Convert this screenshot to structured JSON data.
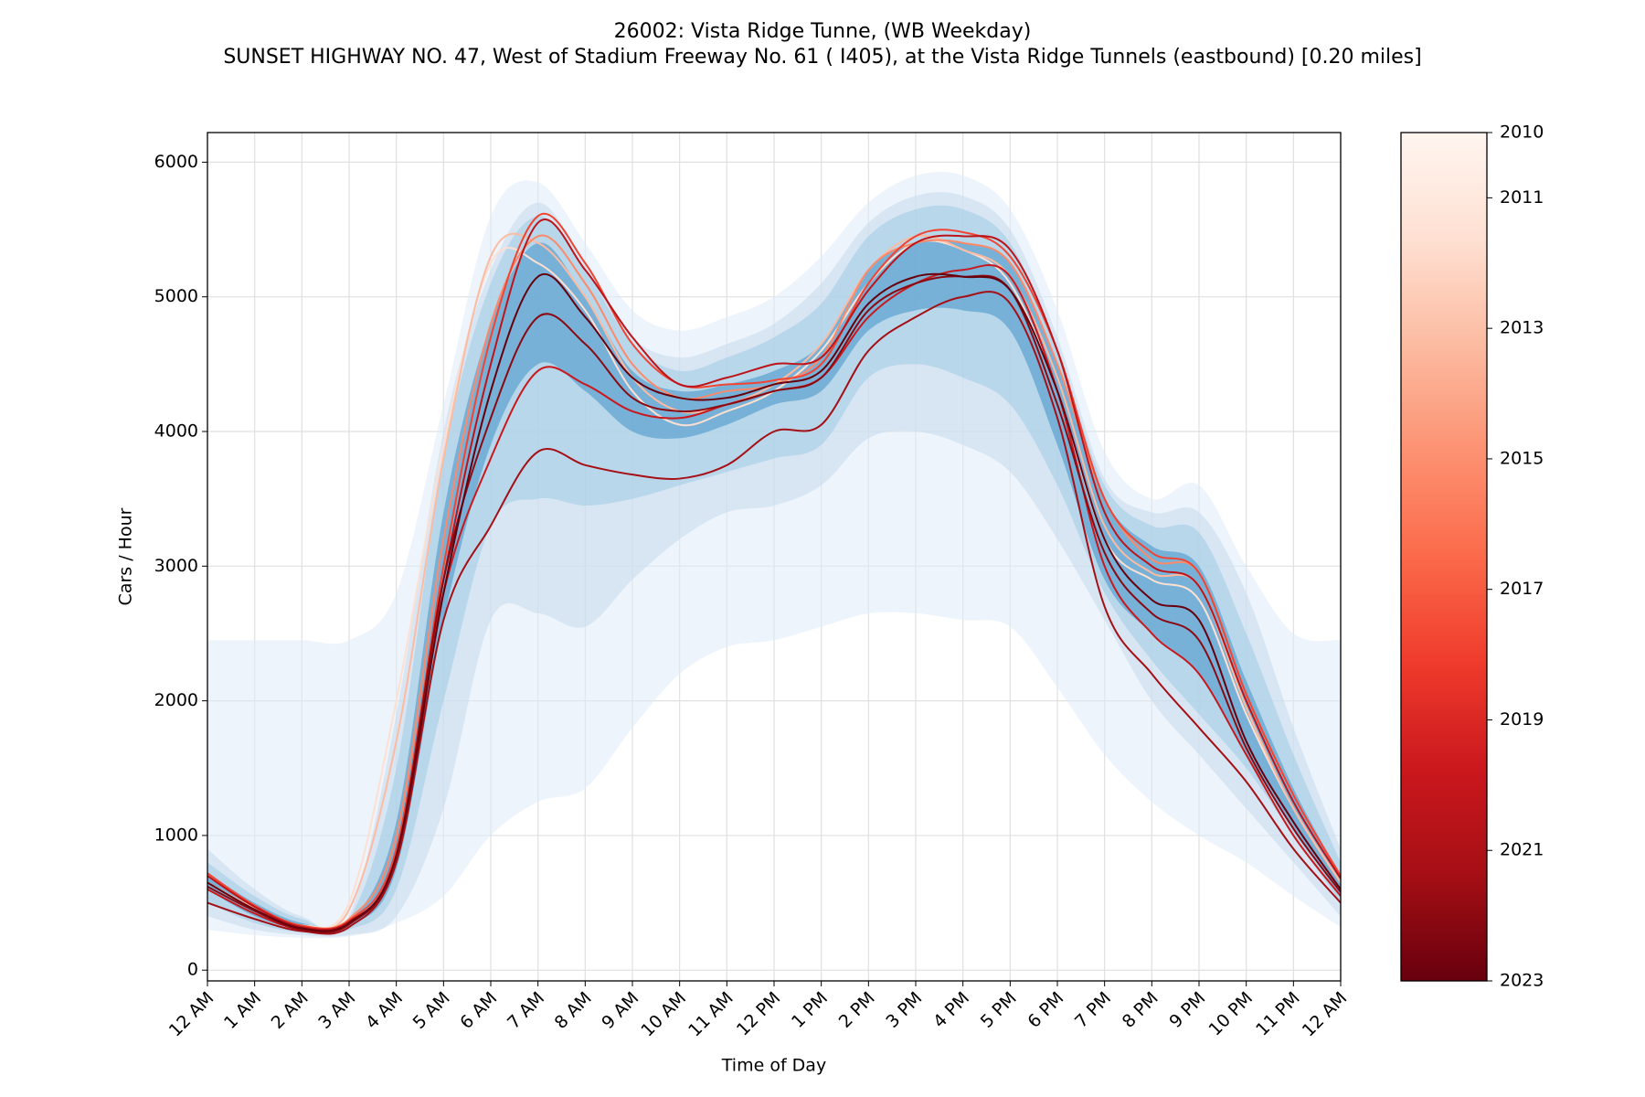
{
  "chart_data": {
    "type": "line",
    "title": "26002: Vista Ridge Tunne, (WB Weekday)",
    "subtitle": "SUNSET HIGHWAY NO. 47, West of Stadium Freeway No. 61 ( I405), at the Vista Ridge Tunnels (eastbound) [0.20 miles]",
    "x_label": "Time of Day",
    "y_label": "Cars / Hour",
    "categories": [
      "12 AM",
      "1 AM",
      "2 AM",
      "3 AM",
      "4 AM",
      "5 AM",
      "6 AM",
      "7 AM",
      "8 AM",
      "9 AM",
      "10 AM",
      "11 AM",
      "12 PM",
      "1 PM",
      "2 PM",
      "3 PM",
      "4 PM",
      "5 PM",
      "6 PM",
      "7 PM",
      "8 PM",
      "9 PM",
      "10 PM",
      "11 PM",
      "12 AM"
    ],
    "ylim": [
      -80,
      6220
    ],
    "yticks": [
      0,
      1000,
      2000,
      3000,
      4000,
      5000,
      6000
    ],
    "grid": true,
    "bands": [
      {
        "color": "#deebf7",
        "low": [
          300,
          260,
          240,
          250,
          350,
          550,
          1000,
          1250,
          1350,
          1800,
          2200,
          2400,
          2450,
          2550,
          2650,
          2650,
          2600,
          2550,
          2100,
          1600,
          1250,
          1000,
          800,
          550,
          320
        ],
        "high": [
          2450,
          2450,
          2450,
          2450,
          2800,
          4200,
          5600,
          5850,
          5400,
          4900,
          4750,
          4850,
          5000,
          5300,
          5700,
          5900,
          5900,
          5650,
          4900,
          3850,
          3500,
          3600,
          3000,
          2500,
          2450
        ]
      },
      {
        "color": "#c6dbef",
        "low": [
          400,
          300,
          260,
          260,
          400,
          1200,
          2600,
          2650,
          2550,
          2900,
          3200,
          3400,
          3450,
          3600,
          3950,
          4000,
          3900,
          3700,
          3200,
          2600,
          2000,
          1600,
          1200,
          800,
          400
        ],
        "high": [
          900,
          600,
          400,
          400,
          1900,
          4000,
          5200,
          5700,
          5250,
          4700,
          4550,
          4650,
          4800,
          5100,
          5550,
          5750,
          5750,
          5500,
          4700,
          3650,
          3400,
          3400,
          2800,
          1800,
          900
        ]
      },
      {
        "color": "#9ecae1",
        "low": [
          500,
          350,
          280,
          300,
          600,
          2000,
          3300,
          3500,
          3450,
          3500,
          3600,
          3700,
          3800,
          3900,
          4400,
          4500,
          4400,
          4200,
          3600,
          2800,
          2300,
          1900,
          1500,
          1000,
          500
        ],
        "high": [
          800,
          550,
          380,
          380,
          1500,
          3800,
          5100,
          5600,
          5200,
          4650,
          4450,
          4550,
          4700,
          4950,
          5450,
          5650,
          5650,
          5400,
          4600,
          3600,
          3300,
          3250,
          2500,
          1600,
          800
        ]
      },
      {
        "color": "#4292c6",
        "low": [
          600,
          400,
          300,
          330,
          750,
          2600,
          3900,
          4500,
          4300,
          4000,
          3950,
          4050,
          4200,
          4300,
          4750,
          4900,
          4900,
          4750,
          3900,
          2900,
          2500,
          2200,
          1600,
          1050,
          550
        ],
        "high": [
          720,
          500,
          350,
          360,
          1100,
          3400,
          4800,
          5400,
          5000,
          4450,
          4300,
          4350,
          4450,
          4650,
          5200,
          5400,
          5400,
          5250,
          4500,
          3500,
          3150,
          3000,
          2150,
          1350,
          700
        ]
      }
    ],
    "series": [
      {
        "color": "#fee0d2",
        "values": [
          650,
          450,
          330,
          500,
          2000,
          3900,
          5250,
          5250,
          4900,
          4300,
          4050,
          4150,
          4300,
          4600,
          5100,
          5400,
          5350,
          5100,
          4300,
          3200,
          2900,
          2750,
          1900,
          1200,
          650
        ]
      },
      {
        "color": "#fcbba1",
        "values": [
          650,
          460,
          330,
          450,
          1700,
          3800,
          5300,
          5400,
          5000,
          4400,
          4150,
          4200,
          4350,
          4650,
          5200,
          5450,
          5350,
          5150,
          4400,
          3300,
          2950,
          2850,
          1950,
          1200,
          650
        ]
      },
      {
        "color": "#fc8a6a",
        "values": [
          700,
          470,
          330,
          380,
          1000,
          3200,
          4800,
          5450,
          5100,
          4500,
          4250,
          4300,
          4350,
          4550,
          5200,
          5400,
          5400,
          5250,
          4500,
          3500,
          3050,
          2950,
          2050,
          1300,
          700
        ]
      },
      {
        "color": "#f14432",
        "values": [
          720,
          480,
          330,
          370,
          900,
          3000,
          4700,
          5600,
          5250,
          4650,
          4350,
          4350,
          4380,
          4500,
          5100,
          5450,
          5480,
          5300,
          4600,
          3500,
          3100,
          2950,
          2050,
          1300,
          700
        ]
      },
      {
        "color": "#bc141a",
        "values": [
          700,
          470,
          320,
          360,
          850,
          2900,
          4500,
          5550,
          5200,
          4700,
          4350,
          4400,
          4500,
          4550,
          5050,
          5400,
          5450,
          5350,
          4600,
          3400,
          3000,
          2850,
          2000,
          1250,
          680
        ]
      },
      {
        "color": "#a50f15",
        "values": [
          500,
          380,
          290,
          320,
          800,
          2600,
          3300,
          3850,
          3750,
          3680,
          3650,
          3750,
          4000,
          4050,
          4600,
          4850,
          5000,
          4950,
          4100,
          2700,
          2200,
          1800,
          1400,
          900,
          500
        ]
      },
      {
        "color": "#c9181d",
        "values": [
          600,
          420,
          300,
          340,
          850,
          2800,
          3800,
          4450,
          4350,
          4150,
          4100,
          4200,
          4300,
          4400,
          4850,
          5100,
          5200,
          5150,
          4300,
          3000,
          2500,
          2200,
          1600,
          1000,
          550
        ]
      },
      {
        "color": "#8a0a12",
        "values": [
          620,
          440,
          300,
          340,
          850,
          2900,
          4100,
          4850,
          4650,
          4250,
          4150,
          4200,
          4300,
          4400,
          4900,
          5100,
          5150,
          5050,
          4200,
          3100,
          2650,
          2450,
          1650,
          1050,
          580
        ]
      },
      {
        "color": "#67000d",
        "values": [
          650,
          450,
          310,
          350,
          850,
          2800,
          4300,
          5150,
          4850,
          4400,
          4250,
          4250,
          4350,
          4450,
          4950,
          5150,
          5150,
          5050,
          4300,
          3200,
          2750,
          2600,
          1700,
          1100,
          600
        ]
      }
    ],
    "colorbar": {
      "lim": [
        2010,
        2023
      ],
      "ticks": [
        2010,
        2011,
        2013,
        2015,
        2017,
        2019,
        2021,
        2023
      ],
      "colors": [
        "#fff5f0",
        "#fee0d2",
        "#fcbba1",
        "#fc9272",
        "#fb6a4a",
        "#ef3b2c",
        "#cb181d",
        "#a50f15",
        "#67000d"
      ]
    }
  }
}
